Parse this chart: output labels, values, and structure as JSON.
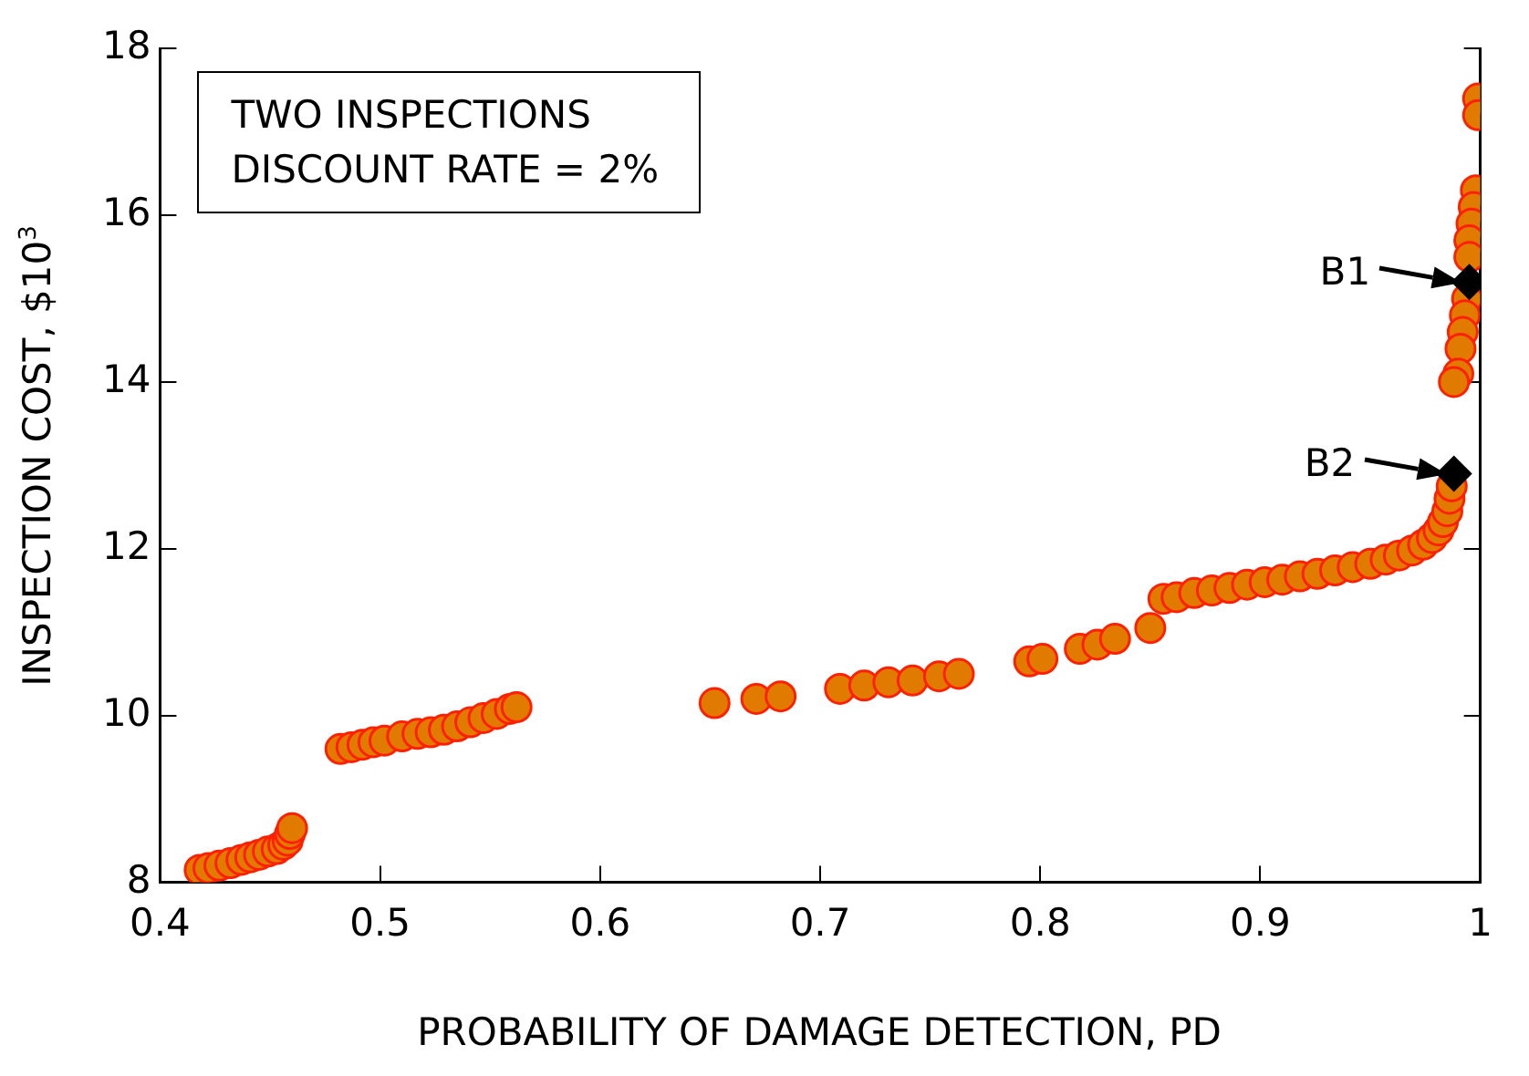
{
  "chart_data": {
    "type": "scatter",
    "xlabel": "PROBABILITY OF DAMAGE DETECTION, PD",
    "ylabel": "INSPECTION COST, $10$^{3}$",
    "xlim": [
      0.4,
      1
    ],
    "xticks": [
      0.4,
      0.5,
      0.6,
      0.7,
      0.8,
      0.9,
      1
    ],
    "ylim": [
      8,
      18
    ],
    "yticks": [
      8,
      10,
      12,
      14,
      16,
      18
    ],
    "grid": false,
    "legend": false,
    "annotations": [
      "TWO INSPECTIONS",
      "DISCOUNT RATE = 2%",
      {
        "text": "B1",
        "x": 0.995,
        "y": 15.2
      },
      {
        "text": "B2",
        "x": 0.988,
        "y": 12.9
      }
    ],
    "series": [
      {
        "color": "#e07b00",
        "marker": "circle",
        "x": [
          0.418,
          0.422,
          0.427,
          0.432,
          0.437,
          0.441,
          0.445,
          0.449,
          0.453,
          0.456,
          0.458,
          0.459,
          0.46,
          0.482,
          0.487,
          0.492,
          0.497,
          0.502,
          0.51,
          0.517,
          0.523,
          0.529,
          0.535,
          0.541,
          0.547,
          0.553,
          0.559,
          0.562,
          0.652,
          0.671,
          0.682,
          0.709,
          0.72,
          0.731,
          0.742,
          0.754,
          0.763,
          0.795,
          0.801,
          0.818,
          0.826,
          0.834,
          0.85,
          0.856,
          0.862,
          0.87,
          0.878,
          0.886,
          0.894,
          0.902,
          0.91,
          0.918,
          0.926,
          0.934,
          0.942,
          0.95,
          0.957,
          0.963,
          0.969,
          0.974,
          0.978,
          0.981,
          0.983,
          0.985,
          0.986,
          0.987,
          0.999,
          0.999,
          0.998,
          0.997,
          0.996,
          0.995,
          0.995,
          0.994,
          0.993,
          0.992,
          0.991,
          0.99,
          0.988
        ],
        "values": [
          8.15,
          8.17,
          8.2,
          8.23,
          8.27,
          8.3,
          8.33,
          8.37,
          8.4,
          8.45,
          8.5,
          8.58,
          8.65,
          9.6,
          9.62,
          9.65,
          9.68,
          9.7,
          9.75,
          9.78,
          9.8,
          9.83,
          9.87,
          9.92,
          9.97,
          10.02,
          10.08,
          10.1,
          10.15,
          10.2,
          10.23,
          10.32,
          10.36,
          10.4,
          10.42,
          10.47,
          10.5,
          10.65,
          10.68,
          10.8,
          10.85,
          10.92,
          11.05,
          11.4,
          11.42,
          11.47,
          11.5,
          11.53,
          11.57,
          11.6,
          11.63,
          11.67,
          11.7,
          11.74,
          11.78,
          11.82,
          11.87,
          11.92,
          11.98,
          12.05,
          12.13,
          12.22,
          12.32,
          12.45,
          12.6,
          12.75,
          17.4,
          17.2,
          16.3,
          16.1,
          15.9,
          15.7,
          15.5,
          15.0,
          14.8,
          14.6,
          14.4,
          14.1,
          14.0
        ]
      },
      {
        "color": "#000000",
        "marker": "diamond",
        "x": [
          0.995,
          0.988
        ],
        "values": [
          15.2,
          12.9
        ]
      }
    ]
  }
}
